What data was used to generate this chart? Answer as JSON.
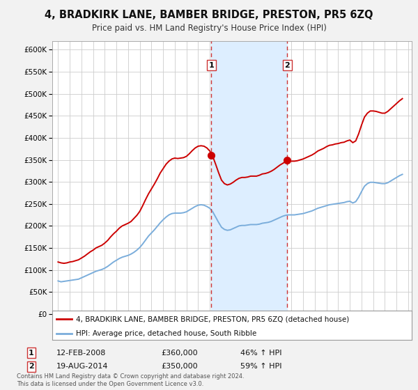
{
  "title": "4, BRADKIRK LANE, BAMBER BRIDGE, PRESTON, PR5 6ZQ",
  "subtitle": "Price paid vs. HM Land Registry's House Price Index (HPI)",
  "figsize": [
    6.0,
    5.6
  ],
  "dpi": 100,
  "background_color": "#f2f2f2",
  "plot_bg_color": "#ffffff",
  "grid_color": "#cccccc",
  "xlim": [
    1994.5,
    2025.3
  ],
  "ylim": [
    0,
    620000
  ],
  "yticks": [
    0,
    50000,
    100000,
    150000,
    200000,
    250000,
    300000,
    350000,
    400000,
    450000,
    500000,
    550000,
    600000
  ],
  "ytick_labels": [
    "£0",
    "£50K",
    "£100K",
    "£150K",
    "£200K",
    "£250K",
    "£300K",
    "£350K",
    "£400K",
    "£450K",
    "£500K",
    "£550K",
    "£600K"
  ],
  "xticks": [
    1995,
    1996,
    1997,
    1998,
    1999,
    2000,
    2001,
    2002,
    2003,
    2004,
    2005,
    2006,
    2007,
    2008,
    2009,
    2010,
    2011,
    2012,
    2013,
    2014,
    2015,
    2016,
    2017,
    2018,
    2019,
    2020,
    2021,
    2022,
    2023,
    2024,
    2025
  ],
  "sale1_x": 2008.12,
  "sale1_y": 360000,
  "sale2_x": 2014.63,
  "sale2_y": 350000,
  "sale1_date": "12-FEB-2008",
  "sale1_price": "£360,000",
  "sale1_hpi": "46% ↑ HPI",
  "sale2_date": "19-AUG-2014",
  "sale2_price": "£350,000",
  "sale2_hpi": "59% ↑ HPI",
  "red_line_color": "#cc0000",
  "blue_line_color": "#7aaddb",
  "shade_color": "#ddeeff",
  "vline_color": "#cc3333",
  "legend_label_red": "4, BRADKIRK LANE, BAMBER BRIDGE, PRESTON, PR5 6ZQ (detached house)",
  "legend_label_blue": "HPI: Average price, detached house, South Ribble",
  "footer_text": "Contains HM Land Registry data © Crown copyright and database right 2024.\nThis data is licensed under the Open Government Licence v3.0.",
  "hpi_data": {
    "years": [
      1995.0,
      1995.25,
      1995.5,
      1995.75,
      1996.0,
      1996.25,
      1996.5,
      1996.75,
      1997.0,
      1997.25,
      1997.5,
      1997.75,
      1998.0,
      1998.25,
      1998.5,
      1998.75,
      1999.0,
      1999.25,
      1999.5,
      1999.75,
      2000.0,
      2000.25,
      2000.5,
      2000.75,
      2001.0,
      2001.25,
      2001.5,
      2001.75,
      2002.0,
      2002.25,
      2002.5,
      2002.75,
      2003.0,
      2003.25,
      2003.5,
      2003.75,
      2004.0,
      2004.25,
      2004.5,
      2004.75,
      2005.0,
      2005.25,
      2005.5,
      2005.75,
      2006.0,
      2006.25,
      2006.5,
      2006.75,
      2007.0,
      2007.25,
      2007.5,
      2007.75,
      2008.0,
      2008.25,
      2008.5,
      2008.75,
      2009.0,
      2009.25,
      2009.5,
      2009.75,
      2010.0,
      2010.25,
      2010.5,
      2010.75,
      2011.0,
      2011.25,
      2011.5,
      2011.75,
      2012.0,
      2012.25,
      2012.5,
      2012.75,
      2013.0,
      2013.25,
      2013.5,
      2013.75,
      2014.0,
      2014.25,
      2014.5,
      2014.75,
      2015.0,
      2015.25,
      2015.5,
      2015.75,
      2016.0,
      2016.25,
      2016.5,
      2016.75,
      2017.0,
      2017.25,
      2017.5,
      2017.75,
      2018.0,
      2018.25,
      2018.5,
      2018.75,
      2019.0,
      2019.25,
      2019.5,
      2019.75,
      2020.0,
      2020.25,
      2020.5,
      2020.75,
      2021.0,
      2021.25,
      2021.5,
      2021.75,
      2022.0,
      2022.25,
      2022.5,
      2022.75,
      2023.0,
      2023.25,
      2023.5,
      2023.75,
      2024.0,
      2024.25,
      2024.5
    ],
    "values": [
      75000,
      73000,
      74000,
      75000,
      76000,
      77000,
      78000,
      79000,
      82000,
      85000,
      88000,
      91000,
      94000,
      97000,
      99000,
      101000,
      104000,
      108000,
      113000,
      118000,
      122000,
      126000,
      129000,
      131000,
      133000,
      136000,
      140000,
      145000,
      151000,
      159000,
      168000,
      177000,
      184000,
      191000,
      199000,
      207000,
      214000,
      220000,
      225000,
      228000,
      229000,
      229000,
      229000,
      230000,
      232000,
      236000,
      240000,
      244000,
      247000,
      248000,
      247000,
      244000,
      240000,
      232000,
      220000,
      208000,
      197000,
      192000,
      190000,
      191000,
      194000,
      197000,
      200000,
      201000,
      201000,
      202000,
      203000,
      203000,
      203000,
      204000,
      206000,
      207000,
      208000,
      210000,
      213000,
      216000,
      219000,
      222000,
      224000,
      225000,
      225000,
      225000,
      226000,
      227000,
      228000,
      230000,
      232000,
      234000,
      237000,
      240000,
      242000,
      244000,
      246000,
      248000,
      249000,
      250000,
      251000,
      252000,
      253000,
      255000,
      256000,
      252000,
      255000,
      265000,
      278000,
      290000,
      296000,
      299000,
      299000,
      298000,
      297000,
      296000,
      296000,
      298000,
      302000,
      306000,
      310000,
      314000,
      317000
    ]
  },
  "red_data": {
    "years": [
      1995.0,
      1995.25,
      1995.5,
      1995.75,
      1996.0,
      1996.25,
      1996.5,
      1996.75,
      1997.0,
      1997.25,
      1997.5,
      1997.75,
      1998.0,
      1998.25,
      1998.5,
      1998.75,
      1999.0,
      1999.25,
      1999.5,
      1999.75,
      2000.0,
      2000.25,
      2000.5,
      2000.75,
      2001.0,
      2001.25,
      2001.5,
      2001.75,
      2002.0,
      2002.25,
      2002.5,
      2002.75,
      2003.0,
      2003.25,
      2003.5,
      2003.75,
      2004.0,
      2004.25,
      2004.5,
      2004.75,
      2005.0,
      2005.25,
      2005.5,
      2005.75,
      2006.0,
      2006.25,
      2006.5,
      2006.75,
      2007.0,
      2007.25,
      2007.5,
      2007.75,
      2008.0,
      2008.25,
      2008.5,
      2008.75,
      2009.0,
      2009.25,
      2009.5,
      2009.75,
      2010.0,
      2010.25,
      2010.5,
      2010.75,
      2011.0,
      2011.25,
      2011.5,
      2011.75,
      2012.0,
      2012.25,
      2012.5,
      2012.75,
      2013.0,
      2013.25,
      2013.5,
      2013.75,
      2014.0,
      2014.25,
      2014.5,
      2014.75,
      2015.0,
      2015.25,
      2015.5,
      2015.75,
      2016.0,
      2016.25,
      2016.5,
      2016.75,
      2017.0,
      2017.25,
      2017.5,
      2017.75,
      2018.0,
      2018.25,
      2018.5,
      2018.75,
      2019.0,
      2019.25,
      2019.5,
      2019.75,
      2020.0,
      2020.25,
      2020.5,
      2020.75,
      2021.0,
      2021.25,
      2021.5,
      2021.75,
      2022.0,
      2022.25,
      2022.5,
      2022.75,
      2023.0,
      2023.25,
      2023.5,
      2023.75,
      2024.0,
      2024.25,
      2024.5
    ],
    "values": [
      118000,
      116000,
      115000,
      116000,
      118000,
      119000,
      121000,
      123000,
      127000,
      131000,
      136000,
      141000,
      145000,
      150000,
      153000,
      156000,
      161000,
      167000,
      175000,
      182000,
      188000,
      195000,
      200000,
      203000,
      206000,
      210000,
      217000,
      224000,
      233000,
      246000,
      260000,
      273000,
      284000,
      295000,
      307000,
      320000,
      330000,
      340000,
      347000,
      352000,
      354000,
      353000,
      354000,
      355000,
      358000,
      364000,
      371000,
      377000,
      381000,
      382000,
      381000,
      377000,
      370000,
      358000,
      340000,
      321000,
      304000,
      296000,
      293000,
      295000,
      299000,
      304000,
      308000,
      310000,
      310000,
      311000,
      313000,
      313000,
      313000,
      315000,
      318000,
      319000,
      321000,
      324000,
      328000,
      333000,
      338000,
      342000,
      346000,
      347000,
      347000,
      347000,
      348000,
      350000,
      352000,
      355000,
      358000,
      361000,
      365000,
      370000,
      373000,
      376000,
      380000,
      383000,
      384000,
      386000,
      387000,
      389000,
      390000,
      393000,
      395000,
      389000,
      393000,
      409000,
      429000,
      447000,
      456000,
      461000,
      461000,
      460000,
      458000,
      456000,
      456000,
      460000,
      466000,
      472000,
      478000,
      484000,
      489000
    ]
  }
}
